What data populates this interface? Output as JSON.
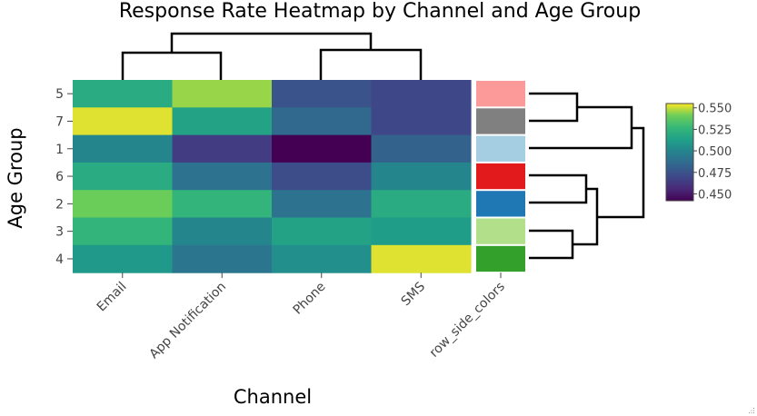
{
  "chart_data": {
    "type": "heatmap",
    "title": "Response Rate Heatmap by Channel and Age Group",
    "xlabel": "Channel",
    "ylabel": "Age Group",
    "x": [
      "Email",
      "App Notification",
      "Phone",
      "SMS"
    ],
    "y": [
      "5",
      "7",
      "1",
      "6",
      "2",
      "3",
      "4"
    ],
    "z": [
      [
        0.52,
        0.545,
        0.475,
        0.47
      ],
      [
        0.552,
        0.515,
        0.485,
        0.47
      ],
      [
        0.5,
        0.465,
        0.442,
        0.482
      ],
      [
        0.52,
        0.49,
        0.472,
        0.5
      ],
      [
        0.54,
        0.525,
        0.49,
        0.52
      ],
      [
        0.525,
        0.5,
        0.515,
        0.512
      ],
      [
        0.51,
        0.492,
        0.505,
        0.552
      ]
    ],
    "zmin": 0.442,
    "zmax": 0.555,
    "colorscale": "Viridis",
    "colorbar_ticks": [
      "0.550",
      "0.525",
      "0.500",
      "0.475",
      "0.450"
    ],
    "colorbar_tick_values": [
      0.55,
      0.525,
      0.5,
      0.475,
      0.45
    ],
    "side_colors_label": "row_side_colors",
    "row_side_colors": [
      "#fb9a99",
      "#808080",
      "#a6cee3",
      "#e31a1c",
      "#1f78b4",
      "#b2df8a",
      "#33a02c"
    ],
    "col_dendrogram": "((Email,App Notification),(Phone,SMS))",
    "row_dendrogram": "(((5,7),1),((6,2),(3,4)))"
  }
}
